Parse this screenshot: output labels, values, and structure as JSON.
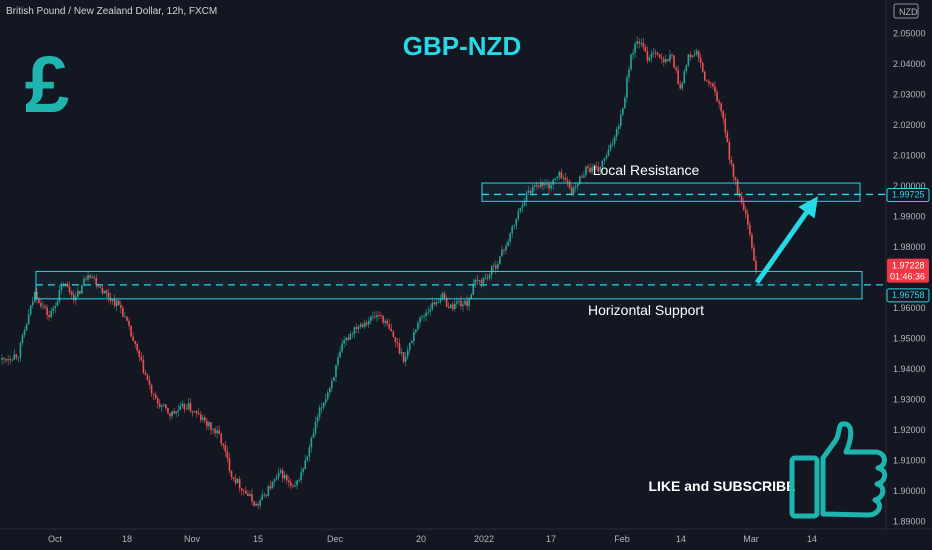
{
  "header": {
    "symbol_info": "British Pound / New Zealand Dollar, 12h, FXCM"
  },
  "chart_title": "GBP-NZD",
  "currency_symbol": "£",
  "currency_unit": "NZD",
  "cta_text": "LIKE and SUBSCRIBE",
  "colors": {
    "background": "#131722",
    "up": "#26a69a",
    "down": "#ef5350",
    "accent": "#27d8e6",
    "price_tag": "#f23645"
  },
  "chart_data": {
    "type": "candlestick",
    "title": "GBP-NZD",
    "x_ticks": [
      "Oct",
      "18",
      "Nov",
      "15",
      "Dec",
      "20",
      "2022",
      "17",
      "Feb",
      "14",
      "Mar",
      "14"
    ],
    "y_ticks": [
      "2.05000",
      "2.04000",
      "2.03000",
      "2.02000",
      "2.01000",
      "2.00000",
      "1.99000",
      "1.98000",
      "1.97000",
      "1.96000",
      "1.95000",
      "1.94000",
      "1.93000",
      "1.92000",
      "1.91000",
      "1.90000",
      "1.89000"
    ],
    "ylim": [
      1.8875,
      2.0535
    ],
    "path": [
      [
        0,
        1.943
      ],
      [
        8,
        1.945
      ],
      [
        16,
        1.965
      ],
      [
        23,
        1.957
      ],
      [
        30,
        1.968
      ],
      [
        36,
        1.963
      ],
      [
        42,
        1.972
      ],
      [
        50,
        1.965
      ],
      [
        58,
        1.96
      ],
      [
        66,
        1.945
      ],
      [
        74,
        1.93
      ],
      [
        82,
        1.925
      ],
      [
        90,
        1.928
      ],
      [
        98,
        1.923
      ],
      [
        106,
        1.918
      ],
      [
        112,
        1.905
      ],
      [
        118,
        1.9
      ],
      [
        124,
        1.895
      ],
      [
        130,
        1.901
      ],
      [
        136,
        1.906
      ],
      [
        142,
        1.9
      ],
      [
        148,
        1.91
      ],
      [
        154,
        1.925
      ],
      [
        160,
        1.935
      ],
      [
        166,
        1.948
      ],
      [
        172,
        1.954
      ],
      [
        178,
        1.956
      ],
      [
        184,
        1.958
      ],
      [
        190,
        1.951
      ],
      [
        196,
        1.943
      ],
      [
        202,
        1.955
      ],
      [
        208,
        1.96
      ],
      [
        214,
        1.964
      ],
      [
        218,
        1.96
      ],
      [
        222,
        1.962
      ],
      [
        226,
        1.961
      ],
      [
        230,
        1.968
      ],
      [
        236,
        1.97
      ],
      [
        242,
        1.976
      ],
      [
        248,
        1.985
      ],
      [
        254,
        1.996
      ],
      [
        260,
        2.001
      ],
      [
        266,
        2.0
      ],
      [
        272,
        2.004
      ],
      [
        278,
        1.998
      ],
      [
        284,
        2.006
      ],
      [
        290,
        2.005
      ],
      [
        296,
        2.012
      ],
      [
        302,
        2.025
      ],
      [
        306,
        2.043
      ],
      [
        310,
        2.048
      ],
      [
        314,
        2.042
      ],
      [
        318,
        2.045
      ],
      [
        322,
        2.04
      ],
      [
        326,
        2.043
      ],
      [
        330,
        2.032
      ],
      [
        334,
        2.042
      ],
      [
        338,
        2.044
      ],
      [
        342,
        2.035
      ],
      [
        346,
        2.032
      ],
      [
        350,
        2.025
      ],
      [
        354,
        2.01
      ],
      [
        358,
        1.998
      ],
      [
        362,
        1.99
      ],
      [
        366,
        1.976
      ],
      [
        368,
        1.9723
      ]
    ],
    "candle_count": 369,
    "last_price": "1.97228",
    "countdown": "01:46:36",
    "levels": [
      {
        "name": "Local Resistance",
        "price": 1.99725,
        "label": "1.99725",
        "zone": [
          1.995,
          2.001
        ]
      },
      {
        "name": "Horizontal Support",
        "price": 1.96758,
        "label": "1.96758",
        "zone": [
          1.963,
          1.972
        ]
      }
    ],
    "annotations": [
      "Local Resistance",
      "Horizontal Support"
    ],
    "arrow": {
      "from_price": 1.969,
      "to_price": 1.996,
      "direction": "up"
    },
    "grid": false
  }
}
